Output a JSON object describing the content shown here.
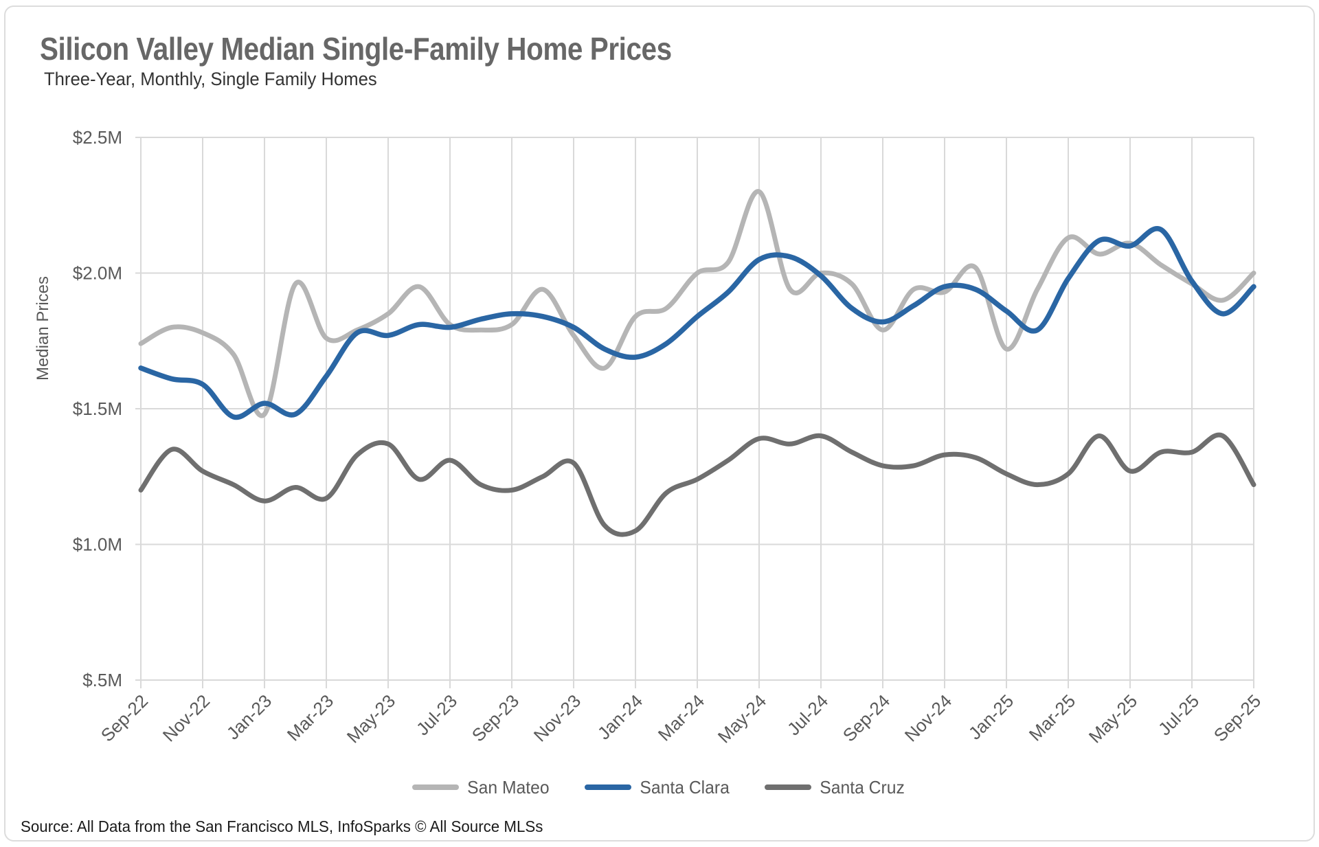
{
  "header": {
    "title": "Silicon Valley Median Single-Family Home Prices",
    "subtitle": "Three-Year, Monthly, Single Family Homes"
  },
  "chart_data": {
    "type": "line",
    "title": "Silicon Valley Median Single-Family Home Prices",
    "subtitle": "Three-Year, Monthly, Single Family Homes",
    "xlabel": "",
    "ylabel": "Median Prices",
    "ylim": [
      0.5,
      2.5
    ],
    "y_unit": "$M",
    "grid": true,
    "legend_position": "bottom",
    "grid_color": "#d9d9d9",
    "axis_text_color": "#595959",
    "x_tick_interval": 2,
    "yticks": {
      "values": [
        2.5,
        2.0,
        1.5,
        1.0,
        0.5
      ],
      "labels": [
        "$2.5M",
        "$2.0M",
        "$1.5M",
        "$1.0M",
        "$.5M"
      ]
    },
    "x": [
      "Sep-22",
      "Oct-22",
      "Nov-22",
      "Dec-22",
      "Jan-23",
      "Feb-23",
      "Mar-23",
      "Apr-23",
      "May-23",
      "Jun-23",
      "Jul-23",
      "Aug-23",
      "Sep-23",
      "Oct-23",
      "Nov-23",
      "Dec-23",
      "Jan-24",
      "Feb-24",
      "Mar-24",
      "Apr-24",
      "May-24",
      "Jun-24",
      "Jul-24",
      "Aug-24",
      "Sep-24",
      "Oct-24",
      "Nov-24",
      "Dec-24",
      "Jan-25",
      "Feb-25",
      "Mar-25",
      "Apr-25",
      "May-25",
      "Jun-25",
      "Jul-25",
      "Aug-25",
      "Sep-25"
    ],
    "series": [
      {
        "name": "San Mateo",
        "color": "#b5b5b5",
        "line_width": 7,
        "values": [
          1.74,
          1.8,
          1.78,
          1.7,
          1.48,
          1.96,
          1.76,
          1.79,
          1.85,
          1.95,
          1.81,
          1.79,
          1.81,
          1.94,
          1.77,
          1.65,
          1.84,
          1.87,
          2.0,
          2.04,
          2.3,
          1.94,
          2.0,
          1.96,
          1.79,
          1.94,
          1.93,
          2.02,
          1.72,
          1.94,
          2.13,
          2.07,
          2.11,
          2.03,
          1.96,
          1.9,
          2.0
        ]
      },
      {
        "name": "Santa Clara",
        "color": "#2a66a4",
        "line_width": 7.5,
        "values": [
          1.65,
          1.61,
          1.59,
          1.47,
          1.52,
          1.48,
          1.62,
          1.78,
          1.77,
          1.81,
          1.8,
          1.83,
          1.85,
          1.84,
          1.8,
          1.72,
          1.69,
          1.74,
          1.84,
          1.93,
          2.05,
          2.06,
          1.99,
          1.87,
          1.82,
          1.88,
          1.95,
          1.94,
          1.86,
          1.79,
          1.98,
          2.12,
          2.1,
          2.16,
          1.97,
          1.85,
          1.95
        ]
      },
      {
        "name": "Santa Cruz",
        "color": "#6f6f6f",
        "line_width": 7,
        "values": [
          1.2,
          1.35,
          1.27,
          1.22,
          1.16,
          1.21,
          1.17,
          1.33,
          1.37,
          1.24,
          1.31,
          1.22,
          1.2,
          1.25,
          1.3,
          1.07,
          1.05,
          1.19,
          1.24,
          1.31,
          1.39,
          1.37,
          1.4,
          1.34,
          1.29,
          1.29,
          1.33,
          1.32,
          1.26,
          1.22,
          1.26,
          1.4,
          1.27,
          1.34,
          1.34,
          1.4,
          1.22
        ]
      }
    ]
  },
  "footer": {
    "source": "Source: All Data from the San Francisco MLS, InfoSparks © All Source MLSs"
  }
}
